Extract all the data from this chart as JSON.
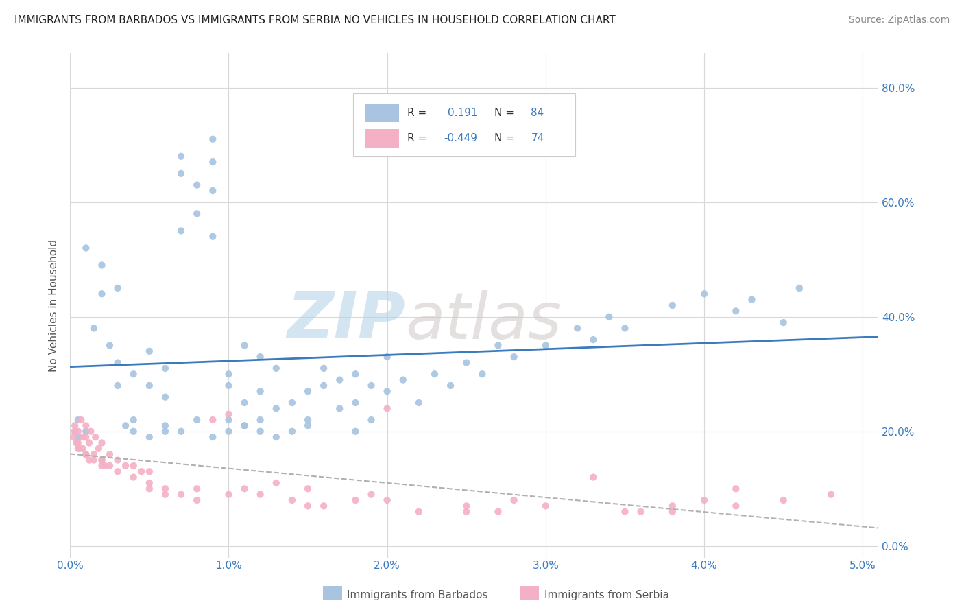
{
  "title": "IMMIGRANTS FROM BARBADOS VS IMMIGRANTS FROM SERBIA NO VEHICLES IN HOUSEHOLD CORRELATION CHART",
  "source": "Source: ZipAtlas.com",
  "ylabel_left": "No Vehicles in Household",
  "ylabel_right_ticks": [
    "0.0%",
    "20.0%",
    "40.0%",
    "60.0%",
    "80.0%"
  ],
  "ylabel_right_vals": [
    0.0,
    0.2,
    0.4,
    0.6,
    0.8
  ],
  "legend_label1": "Immigrants from Barbados",
  "legend_label2": "Immigrants from Serbia",
  "R_barbados": 0.191,
  "N_barbados": 84,
  "R_serbia": -0.449,
  "N_serbia": 74,
  "color_barbados": "#a8c4e0",
  "color_serbia": "#f4b0c4",
  "trendline_barbados_color": "#3a7abf",
  "trendline_serbia_color": "#c06080",
  "xmin": 0.0,
  "xmax": 0.051,
  "ymin": -0.02,
  "ymax": 0.86,
  "watermark_zip": "ZIP",
  "watermark_atlas": "atlas",
  "background_color": "#ffffff",
  "grid_color": "#d8d8d8",
  "barbados_x": [
    0.0005,
    0.0005,
    0.001,
    0.001,
    0.0015,
    0.002,
    0.002,
    0.0025,
    0.003,
    0.003,
    0.003,
    0.004,
    0.004,
    0.005,
    0.005,
    0.006,
    0.006,
    0.006,
    0.007,
    0.007,
    0.007,
    0.008,
    0.008,
    0.009,
    0.009,
    0.009,
    0.009,
    0.01,
    0.01,
    0.01,
    0.011,
    0.011,
    0.011,
    0.012,
    0.012,
    0.012,
    0.013,
    0.013,
    0.014,
    0.014,
    0.015,
    0.015,
    0.016,
    0.016,
    0.017,
    0.017,
    0.018,
    0.018,
    0.019,
    0.019,
    0.02,
    0.02,
    0.021,
    0.022,
    0.023,
    0.024,
    0.025,
    0.026,
    0.027,
    0.028,
    0.03,
    0.032,
    0.033,
    0.034,
    0.035,
    0.038,
    0.04,
    0.042,
    0.043,
    0.045,
    0.046,
    0.0035,
    0.004,
    0.005,
    0.006,
    0.007,
    0.008,
    0.009,
    0.01,
    0.011,
    0.012,
    0.013,
    0.015,
    0.018
  ],
  "barbados_y": [
    0.19,
    0.22,
    0.52,
    0.2,
    0.38,
    0.44,
    0.49,
    0.35,
    0.45,
    0.32,
    0.28,
    0.3,
    0.22,
    0.34,
    0.28,
    0.31,
    0.26,
    0.2,
    0.68,
    0.65,
    0.55,
    0.63,
    0.58,
    0.71,
    0.67,
    0.62,
    0.54,
    0.28,
    0.22,
    0.3,
    0.25,
    0.35,
    0.21,
    0.33,
    0.27,
    0.22,
    0.31,
    0.24,
    0.25,
    0.2,
    0.27,
    0.22,
    0.28,
    0.31,
    0.24,
    0.29,
    0.25,
    0.3,
    0.22,
    0.28,
    0.33,
    0.27,
    0.29,
    0.25,
    0.3,
    0.28,
    0.32,
    0.3,
    0.35,
    0.33,
    0.35,
    0.38,
    0.36,
    0.4,
    0.38,
    0.42,
    0.44,
    0.41,
    0.43,
    0.39,
    0.45,
    0.21,
    0.2,
    0.19,
    0.21,
    0.2,
    0.22,
    0.19,
    0.2,
    0.21,
    0.2,
    0.19,
    0.21,
    0.2
  ],
  "serbia_x": [
    0.0002,
    0.0003,
    0.0003,
    0.0004,
    0.0005,
    0.0005,
    0.0006,
    0.0007,
    0.0008,
    0.0008,
    0.001,
    0.001,
    0.001,
    0.0012,
    0.0012,
    0.0013,
    0.0015,
    0.0015,
    0.0016,
    0.0018,
    0.002,
    0.002,
    0.002,
    0.0022,
    0.0025,
    0.0025,
    0.003,
    0.003,
    0.0035,
    0.004,
    0.004,
    0.0045,
    0.005,
    0.005,
    0.005,
    0.006,
    0.006,
    0.007,
    0.008,
    0.008,
    0.009,
    0.01,
    0.01,
    0.011,
    0.012,
    0.013,
    0.014,
    0.015,
    0.015,
    0.016,
    0.018,
    0.019,
    0.02,
    0.02,
    0.022,
    0.025,
    0.025,
    0.027,
    0.028,
    0.03,
    0.033,
    0.035,
    0.036,
    0.038,
    0.038,
    0.04,
    0.042,
    0.042,
    0.045,
    0.048,
    0.0003,
    0.0005,
    0.001,
    0.002
  ],
  "serbia_y": [
    0.19,
    0.21,
    0.2,
    0.18,
    0.2,
    0.18,
    0.17,
    0.22,
    0.17,
    0.19,
    0.19,
    0.21,
    0.16,
    0.18,
    0.15,
    0.2,
    0.16,
    0.15,
    0.19,
    0.17,
    0.15,
    0.18,
    0.14,
    0.14,
    0.16,
    0.14,
    0.13,
    0.15,
    0.14,
    0.12,
    0.14,
    0.13,
    0.11,
    0.13,
    0.1,
    0.1,
    0.09,
    0.09,
    0.08,
    0.1,
    0.22,
    0.23,
    0.09,
    0.1,
    0.09,
    0.11,
    0.08,
    0.1,
    0.07,
    0.07,
    0.08,
    0.09,
    0.24,
    0.08,
    0.06,
    0.07,
    0.06,
    0.06,
    0.08,
    0.07,
    0.12,
    0.06,
    0.06,
    0.07,
    0.06,
    0.08,
    0.1,
    0.07,
    0.08,
    0.09,
    0.2,
    0.17,
    0.16,
    0.15
  ]
}
